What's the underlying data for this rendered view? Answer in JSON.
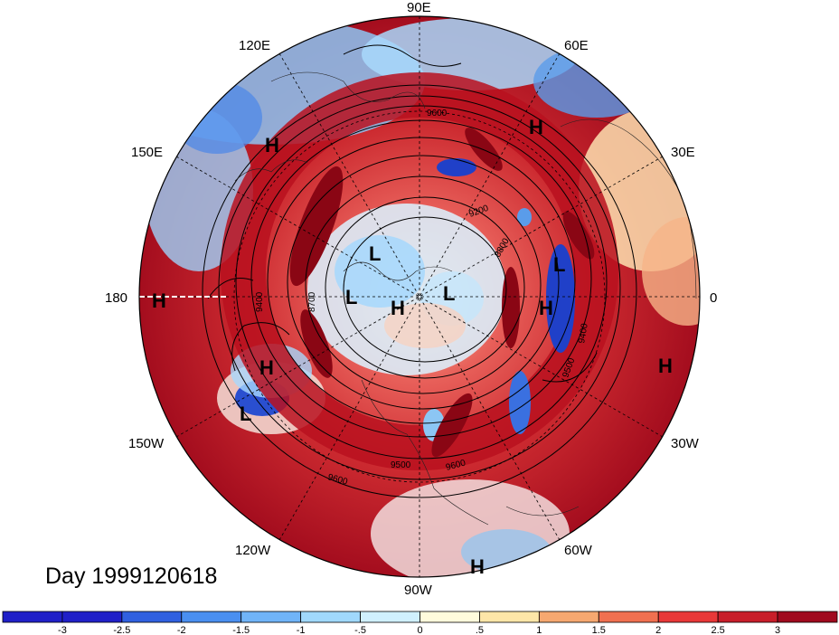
{
  "title": "Day 1999120618",
  "longitude_labels": [
    {
      "id": "90E",
      "text": "90E"
    },
    {
      "id": "60E",
      "text": "60E"
    },
    {
      "id": "30E",
      "text": "30E"
    },
    {
      "id": "0",
      "text": "0"
    },
    {
      "id": "30W",
      "text": "30W"
    },
    {
      "id": "60W",
      "text": "60W"
    },
    {
      "id": "90W",
      "text": "90W"
    },
    {
      "id": "120W",
      "text": "120W"
    },
    {
      "id": "150W",
      "text": "150W"
    },
    {
      "id": "180",
      "text": "180"
    },
    {
      "id": "150E",
      "text": "150E"
    },
    {
      "id": "120E",
      "text": "120E"
    }
  ],
  "pressure_centers": [
    {
      "type": "H",
      "text": "H"
    },
    {
      "type": "H",
      "text": "H"
    },
    {
      "type": "L",
      "text": "L"
    },
    {
      "type": "L",
      "text": "L"
    },
    {
      "type": "H",
      "text": "H"
    },
    {
      "type": "L",
      "text": "L"
    },
    {
      "type": "H",
      "text": "H"
    },
    {
      "type": "L",
      "text": "L"
    },
    {
      "type": "H",
      "text": "H"
    },
    {
      "type": "H",
      "text": "H"
    },
    {
      "type": "L",
      "text": "L"
    },
    {
      "type": "H",
      "text": "H"
    },
    {
      "type": "H",
      "text": "H"
    }
  ],
  "contour_labels": [
    "9600",
    "9200",
    "8800",
    "9400",
    "8700",
    "9500",
    "9600",
    "9500",
    "9600",
    "9400"
  ],
  "colorbar": {
    "ticks": [
      "-3",
      "-2.5",
      "-2",
      "-1.5",
      "-1",
      "-.5",
      "0",
      ".5",
      "1",
      "1.5",
      "2",
      "2.5",
      "3"
    ],
    "colors": [
      "#2020c8",
      "#3060e0",
      "#4a8ff0",
      "#70b4f8",
      "#a0d8fc",
      "#d0f0fe",
      "#fffbdc",
      "#fde6a8",
      "#f6a870",
      "#f07050",
      "#e83838",
      "#c81e2a",
      "#a00a1e"
    ]
  }
}
